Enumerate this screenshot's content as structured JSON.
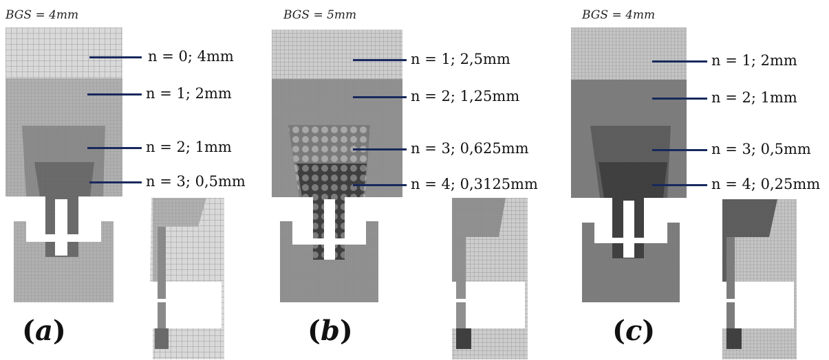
{
  "panels": [
    {
      "id": "a",
      "bgs": "BGS = 4mm",
      "label_letter": "a",
      "levels": [
        {
          "text": "n = 0; 4mm"
        },
        {
          "text": "n = 1; 2mm"
        },
        {
          "text": "n = 2; 1mm"
        },
        {
          "text": "n = 3; 0,5mm"
        }
      ],
      "colors": {
        "l0": "#d7d7d7",
        "l1": "#a9a9a9",
        "l2": "#8b8b8b",
        "l3": "#6b6b6b",
        "bg": "#cfcfcf"
      }
    },
    {
      "id": "b",
      "bgs": "BGS = 5mm",
      "label_letter": "b",
      "levels": [
        {
          "text": "n = 1;  2,5mm"
        },
        {
          "text": "n = 2; 1,25mm"
        },
        {
          "text": "n = 3; 0,625mm"
        },
        {
          "text": "n = 4; 0,3125mm"
        }
      ],
      "colors": {
        "l0": "#c9c9c9",
        "l1": "#8f8f8f",
        "l2": "#6a6a6a",
        "l3": "#4a4a4a",
        "bg": "#9a9a9a"
      }
    },
    {
      "id": "c",
      "bgs": "BGS = 4mm",
      "label_letter": "c",
      "levels": [
        {
          "text": "n = 1;  2mm"
        },
        {
          "text": "n = 2; 1mm"
        },
        {
          "text": "n = 3; 0,5mm"
        },
        {
          "text": "n = 4; 0,25mm"
        }
      ],
      "colors": {
        "l0": "#bdbdbd",
        "l1": "#7d7d7d",
        "l2": "#5e5e5e",
        "l3": "#404040",
        "bg": "#6e6e6e"
      }
    }
  ],
  "leader_color": "#17285c"
}
